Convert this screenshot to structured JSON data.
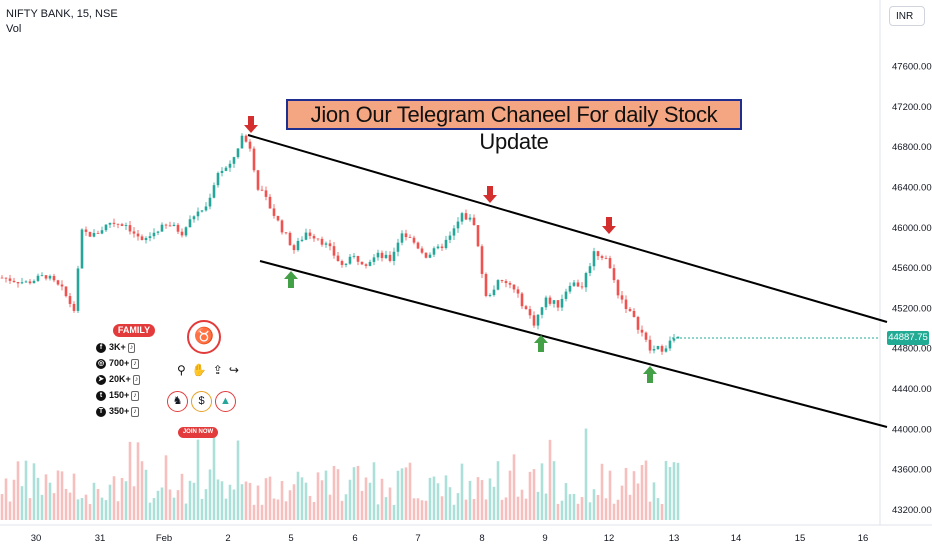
{
  "header": {
    "title": "NIFTY BANK, 15, NSE",
    "volume_label": "Vol"
  },
  "currency": "INR",
  "banner_text": "Jion Our Telegram Chaneel For daily Stock Update",
  "last_price": "44887.75",
  "family": {
    "title": "FAMILY",
    "items": [
      {
        "icon": "facebook-icon",
        "glyph": "f",
        "count": "3K+"
      },
      {
        "icon": "instagram-icon",
        "glyph": "◎",
        "count": "700+"
      },
      {
        "icon": "telegram-icon",
        "glyph": "➤",
        "count": "20K+"
      },
      {
        "icon": "twitter-icon",
        "glyph": "t",
        "count": "150+"
      },
      {
        "icon": "tradingview-icon",
        "glyph": "T",
        "count": "350+"
      }
    ],
    "join_label": "JOIN NOW"
  },
  "colors": {
    "up": "#26a69a",
    "down": "#ef5350",
    "arrow_up": "#43a047",
    "arrow_down": "#d32f2f",
    "trend": "#000000",
    "banner_bg": "#f4a582",
    "banner_border": "#1f2f8f"
  },
  "chart_data": {
    "type": "candlestick",
    "title": "NIFTY BANK, 15, NSE",
    "ylim": [
      43000,
      48000
    ],
    "y_ticks": [
      43200,
      43600,
      44000,
      44400,
      44800,
      45200,
      45600,
      46000,
      46400,
      46800,
      47200,
      47600
    ],
    "y_tick_labels": [
      "43200.00",
      "43600.00",
      "44000.00",
      "44400.00",
      "44800.00",
      "45200.00",
      "45600.00",
      "46000.00",
      "46400.00",
      "46800.00",
      "47200.00",
      "47600.00"
    ],
    "x_tick_labels": [
      "30",
      "31",
      "Feb",
      "2",
      "5",
      "6",
      "7",
      "8",
      "9",
      "12",
      "13",
      "14",
      "15",
      "16"
    ],
    "close_path": [
      [
        0,
        45500
      ],
      [
        6,
        45450
      ],
      [
        11,
        45520
      ],
      [
        15,
        45380
      ],
      [
        18,
        45180
      ],
      [
        20,
        45950
      ],
      [
        23,
        45920
      ],
      [
        27,
        46050
      ],
      [
        31,
        46030
      ],
      [
        35,
        45850
      ],
      [
        39,
        45980
      ],
      [
        42,
        46020
      ],
      [
        45,
        45950
      ],
      [
        48,
        46120
      ],
      [
        51,
        46200
      ],
      [
        54,
        46550
      ],
      [
        57,
        46600
      ],
      [
        60,
        46900
      ],
      [
        62,
        46800
      ],
      [
        64,
        46400
      ],
      [
        67,
        46200
      ],
      [
        70,
        45980
      ],
      [
        73,
        45780
      ],
      [
        76,
        45950
      ],
      [
        79,
        45900
      ],
      [
        82,
        45780
      ],
      [
        85,
        45620
      ],
      [
        88,
        45700
      ],
      [
        91,
        45650
      ],
      [
        94,
        45720
      ],
      [
        97,
        45680
      ],
      [
        100,
        45950
      ],
      [
        103,
        45850
      ],
      [
        106,
        45720
      ],
      [
        109,
        45780
      ],
      [
        112,
        45900
      ],
      [
        115,
        46120
      ],
      [
        118,
        46050
      ],
      [
        121,
        45300
      ],
      [
        124,
        45450
      ],
      [
        127,
        45430
      ],
      [
        130,
        45250
      ],
      [
        133,
        45050
      ],
      [
        136,
        45280
      ],
      [
        139,
        45230
      ],
      [
        142,
        45450
      ],
      [
        145,
        45420
      ],
      [
        148,
        45750
      ],
      [
        151,
        45700
      ],
      [
        154,
        45350
      ],
      [
        157,
        45150
      ],
      [
        160,
        44950
      ],
      [
        162,
        44780
      ],
      [
        165,
        44800
      ],
      [
        168,
        44890
      ]
    ],
    "candle_count": 170,
    "trendlines": [
      {
        "name": "upper",
        "start": [
          0,
          46900
        ],
        "end": [
          1,
          45100
        ]
      },
      {
        "name": "lower",
        "start": [
          0,
          45700
        ],
        "end": [
          1,
          43990
        ]
      }
    ],
    "annotations": [
      {
        "type": "down-arrow",
        "x": 60,
        "y": 47020
      },
      {
        "type": "down-arrow",
        "x": 119,
        "y": 46370
      },
      {
        "type": "down-arrow",
        "x": 150,
        "y": 45950
      },
      {
        "type": "up-arrow",
        "x": 70,
        "y": 45420
      },
      {
        "type": "up-arrow",
        "x": 131,
        "y": 44690
      },
      {
        "type": "up-arrow",
        "x": 159,
        "y": 44410
      }
    ]
  }
}
